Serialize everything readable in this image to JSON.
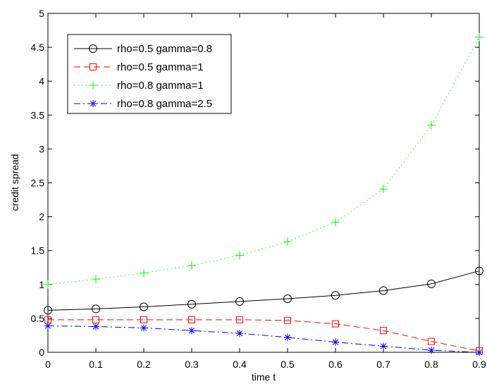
{
  "chart_data": {
    "type": "line",
    "title": "",
    "xlabel": "time t",
    "ylabel": "credit spread",
    "xlim": [
      0,
      0.9
    ],
    "ylim": [
      0,
      5
    ],
    "x": [
      0,
      0.1,
      0.2,
      0.3,
      0.4,
      0.5,
      0.6,
      0.7,
      0.8,
      0.9
    ],
    "x_ticks": [
      "0",
      "0.1",
      "0.2",
      "0.3",
      "0.4",
      "0.5",
      "0.6",
      "0.7",
      "0.8",
      "0.9"
    ],
    "y_ticks": [
      "0",
      "0.5",
      "1",
      "1.5",
      "2",
      "2.5",
      "3",
      "3.5",
      "4",
      "4.5",
      "5"
    ],
    "grid": false,
    "legend_position": "top-left",
    "series": [
      {
        "name": "rho=0.5 gamma=0.8",
        "color": "#000000",
        "line_style": "solid",
        "marker": "circle",
        "values": [
          0.62,
          0.64,
          0.67,
          0.71,
          0.75,
          0.79,
          0.84,
          0.91,
          1.01,
          1.2
        ]
      },
      {
        "name": "rho=0.5 gamma=1",
        "color": "#ff0000",
        "line_style": "dashed",
        "marker": "square",
        "values": [
          0.48,
          0.48,
          0.48,
          0.48,
          0.48,
          0.47,
          0.42,
          0.32,
          0.16,
          0.02
        ]
      },
      {
        "name": "rho=0.8 gamma=1",
        "color": "#00ff00",
        "line_style": "dotted",
        "marker": "plus",
        "values": [
          1.0,
          1.08,
          1.17,
          1.28,
          1.43,
          1.63,
          1.92,
          2.41,
          3.35,
          4.65
        ]
      },
      {
        "name": "rho=0.8 gamma=2.5",
        "color": "#0000ff",
        "line_style": "dashdot",
        "marker": "asterisk",
        "values": [
          0.39,
          0.38,
          0.36,
          0.32,
          0.28,
          0.22,
          0.15,
          0.09,
          0.03,
          0.0
        ]
      }
    ]
  }
}
